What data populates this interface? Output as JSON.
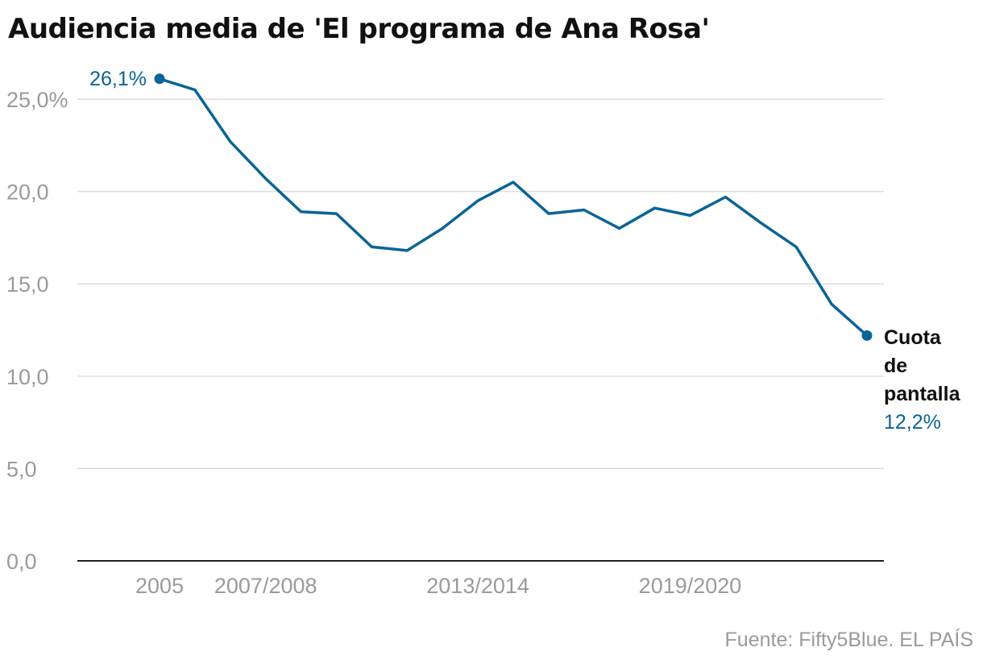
{
  "colors": {
    "series": "#0a6496",
    "grid": "#dddddd",
    "axis": "#222222",
    "muted": "#9a9a9a"
  },
  "footer": {
    "source": "Fuente: Fifty5Blue. EL PAÍS"
  },
  "chart_data": {
    "type": "line",
    "title": "Audiencia media de 'El programa de Ana Rosa'",
    "xlabel": "",
    "ylabel": "",
    "ylim": [
      0,
      25
    ],
    "yticks": [
      "0,0",
      "5,0",
      "10,0",
      "15,0",
      "20,0",
      "25,0%"
    ],
    "ytick_values": [
      0,
      5,
      10,
      15,
      20,
      25
    ],
    "grid": true,
    "x_tick_labels": [
      {
        "label": "2005",
        "index": 0
      },
      {
        "label": "2007/2008",
        "index": 3
      },
      {
        "label": "2013/2014",
        "index": 9
      },
      {
        "label": "2019/2020",
        "index": 15
      }
    ],
    "series": [
      {
        "name": "Cuota de pantalla",
        "name_lines": [
          "Cuota",
          "de",
          "pantalla"
        ],
        "values": [
          26.1,
          25.5,
          22.7,
          20.7,
          18.9,
          18.8,
          17.0,
          16.8,
          18.0,
          19.5,
          20.5,
          18.8,
          19.0,
          18.0,
          19.1,
          18.7,
          19.7,
          18.3,
          17.0,
          13.9,
          12.2
        ]
      }
    ],
    "annotations": {
      "first_value_label": "26,1%",
      "last_value_label": "12,2%"
    }
  }
}
